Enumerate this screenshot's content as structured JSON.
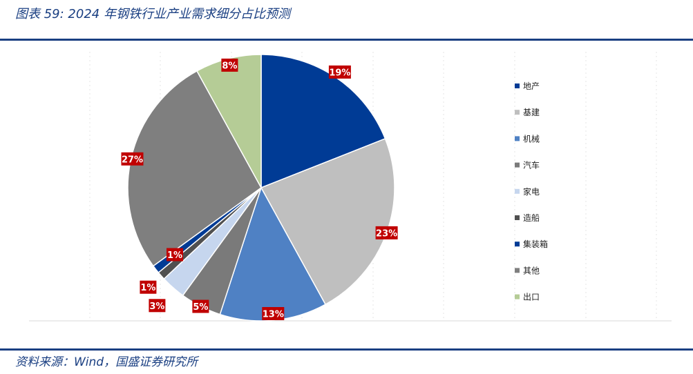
{
  "header": {
    "title": "图表 59:  2024 年钢铁行业产业需求细分占比预测"
  },
  "footer": {
    "source": "资料来源：Wind，国盛证券研究所"
  },
  "chart_data": {
    "type": "pie",
    "title": "",
    "categories": [
      "地产",
      "基建",
      "机械",
      "汽车",
      "家电",
      "造船",
      "集装箱",
      "其他",
      "出口"
    ],
    "values": [
      19,
      23,
      13,
      5,
      3,
      1,
      1,
      27,
      8
    ],
    "value_labels": [
      "19%",
      "23%",
      "13%",
      "5%",
      "3%",
      "1%",
      "1%",
      "27%",
      "8%"
    ],
    "colors": [
      "#003b95",
      "#bfbfbf",
      "#4f81c4",
      "#7a7a7a",
      "#c6d6ee",
      "#505050",
      "#003b95",
      "#7f7f7f",
      "#b5cc96"
    ],
    "legend_position": "right",
    "label_style": "red boxes with white bold text"
  }
}
